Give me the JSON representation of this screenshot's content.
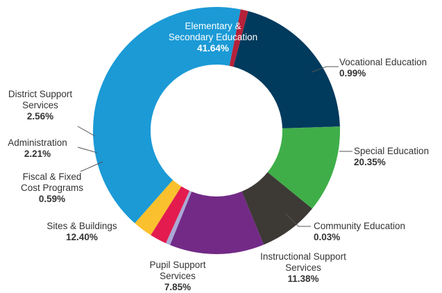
{
  "chart_data": {
    "type": "pie",
    "donut": true,
    "title": "",
    "slices": [
      {
        "label": [
          "Elementary &",
          "Secondary Education"
        ],
        "value": 41.64,
        "display": "41.64%",
        "color": "#1b9ad6"
      },
      {
        "label": [
          "Vocational Education"
        ],
        "value": 0.99,
        "display": "0.99%",
        "color": "#b5213a"
      },
      {
        "label": [
          "Special Education"
        ],
        "value": 20.35,
        "display": "20.35%",
        "color": "#003a5d"
      },
      {
        "label": [
          "Community Education"
        ],
        "value": 0.03,
        "display": "0.03%",
        "color": "#1e6b3a"
      },
      {
        "label": [
          "Instructional Support",
          "Services"
        ],
        "value": 11.38,
        "display": "11.38%",
        "color": "#3fae49"
      },
      {
        "label": [
          "Pupil Support",
          "Services"
        ],
        "value": 7.85,
        "display": "7.85%",
        "color": "#3d3935"
      },
      {
        "label": [
          "Sites & Buildings"
        ],
        "value": 12.4,
        "display": "12.40%",
        "color": "#722a86"
      },
      {
        "label": [
          "Fiscal & Fixed",
          "Cost Programs"
        ],
        "value": 0.59,
        "display": "0.59%",
        "color": "#a9a9d6"
      },
      {
        "label": [
          "Administration"
        ],
        "value": 2.21,
        "display": "2.21%",
        "color": "#e31b4f"
      },
      {
        "label": [
          "District Support",
          "Services"
        ],
        "value": 2.56,
        "display": "2.56%",
        "color": "#fbc02d"
      }
    ]
  }
}
